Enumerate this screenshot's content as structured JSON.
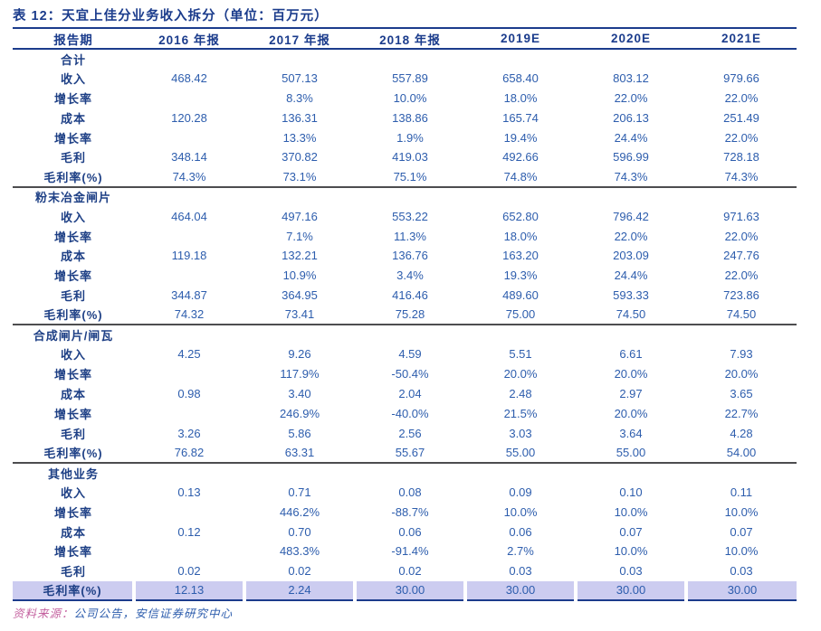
{
  "title": "表 12：天宜上佳分业务收入拆分（单位：百万元）",
  "columns": [
    "报告期",
    "2016 年报",
    "2017 年报",
    "2018 年报",
    "2019E",
    "2020E",
    "2021E"
  ],
  "sections": [
    {
      "name": "合计",
      "rows": [
        {
          "label": "收入",
          "values": [
            "468.42",
            "507.13",
            "557.89",
            "658.40",
            "803.12",
            "979.66"
          ]
        },
        {
          "label": "增长率",
          "values": [
            "",
            "8.3%",
            "10.0%",
            "18.0%",
            "22.0%",
            "22.0%"
          ]
        },
        {
          "label": "成本",
          "values": [
            "120.28",
            "136.31",
            "138.86",
            "165.74",
            "206.13",
            "251.49"
          ]
        },
        {
          "label": "增长率",
          "values": [
            "",
            "13.3%",
            "1.9%",
            "19.4%",
            "24.4%",
            "22.0%"
          ]
        },
        {
          "label": "毛利",
          "values": [
            "348.14",
            "370.82",
            "419.03",
            "492.66",
            "596.99",
            "728.18"
          ]
        },
        {
          "label": "毛利率(%)",
          "values": [
            "74.3%",
            "73.1%",
            "75.1%",
            "74.8%",
            "74.3%",
            "74.3%"
          ]
        }
      ]
    },
    {
      "name": "粉末冶金闸片",
      "rows": [
        {
          "label": "收入",
          "values": [
            "464.04",
            "497.16",
            "553.22",
            "652.80",
            "796.42",
            "971.63"
          ]
        },
        {
          "label": "增长率",
          "values": [
            "",
            "7.1%",
            "11.3%",
            "18.0%",
            "22.0%",
            "22.0%"
          ]
        },
        {
          "label": "成本",
          "values": [
            "119.18",
            "132.21",
            "136.76",
            "163.20",
            "203.09",
            "247.76"
          ]
        },
        {
          "label": "增长率",
          "values": [
            "",
            "10.9%",
            "3.4%",
            "19.3%",
            "24.4%",
            "22.0%"
          ]
        },
        {
          "label": "毛利",
          "values": [
            "344.87",
            "364.95",
            "416.46",
            "489.60",
            "593.33",
            "723.86"
          ]
        },
        {
          "label": "毛利率(%)",
          "values": [
            "74.32",
            "73.41",
            "75.28",
            "75.00",
            "74.50",
            "74.50"
          ]
        }
      ]
    },
    {
      "name": "合成闸片/闸瓦",
      "rows": [
        {
          "label": "收入",
          "values": [
            "4.25",
            "9.26",
            "4.59",
            "5.51",
            "6.61",
            "7.93"
          ]
        },
        {
          "label": "增长率",
          "values": [
            "",
            "117.9%",
            "-50.4%",
            "20.0%",
            "20.0%",
            "20.0%"
          ]
        },
        {
          "label": "成本",
          "values": [
            "0.98",
            "3.40",
            "2.04",
            "2.48",
            "2.97",
            "3.65"
          ]
        },
        {
          "label": "增长率",
          "values": [
            "",
            "246.9%",
            "-40.0%",
            "21.5%",
            "20.0%",
            "22.7%"
          ]
        },
        {
          "label": "毛利",
          "values": [
            "3.26",
            "5.86",
            "2.56",
            "3.03",
            "3.64",
            "4.28"
          ]
        },
        {
          "label": "毛利率(%)",
          "values": [
            "76.82",
            "63.31",
            "55.67",
            "55.00",
            "55.00",
            "54.00"
          ]
        }
      ]
    },
    {
      "name": "其他业务",
      "rows": [
        {
          "label": "收入",
          "values": [
            "0.13",
            "0.71",
            "0.08",
            "0.09",
            "0.10",
            "0.11"
          ]
        },
        {
          "label": "增长率",
          "values": [
            "",
            "446.2%",
            "-88.7%",
            "10.0%",
            "10.0%",
            "10.0%"
          ]
        },
        {
          "label": "成本",
          "values": [
            "0.12",
            "0.70",
            "0.06",
            "0.06",
            "0.07",
            "0.07"
          ]
        },
        {
          "label": "增长率",
          "values": [
            "",
            "483.3%",
            "-91.4%",
            "2.7%",
            "10.0%",
            "10.0%"
          ]
        },
        {
          "label": "毛利",
          "values": [
            "0.02",
            "0.02",
            "0.02",
            "0.03",
            "0.03",
            "0.03"
          ]
        },
        {
          "label": "毛利率(%)",
          "values": [
            "12.13",
            "2.24",
            "30.00",
            "30.00",
            "30.00",
            "30.00"
          ],
          "highlight": true
        }
      ]
    }
  ],
  "footer": {
    "source_label": "资料来源：",
    "source_text": "公司公告，安信证券研究中心"
  },
  "colors": {
    "title_navy": "#1b3c8c",
    "number_blue": "#2d5dad",
    "section_separator_gray": "#4d4d4f",
    "highlight_lavender": "#ccccf0",
    "source_pink": "#c4619f"
  },
  "layout": {
    "label_col_width": 134,
    "value_col_width": 122
  }
}
